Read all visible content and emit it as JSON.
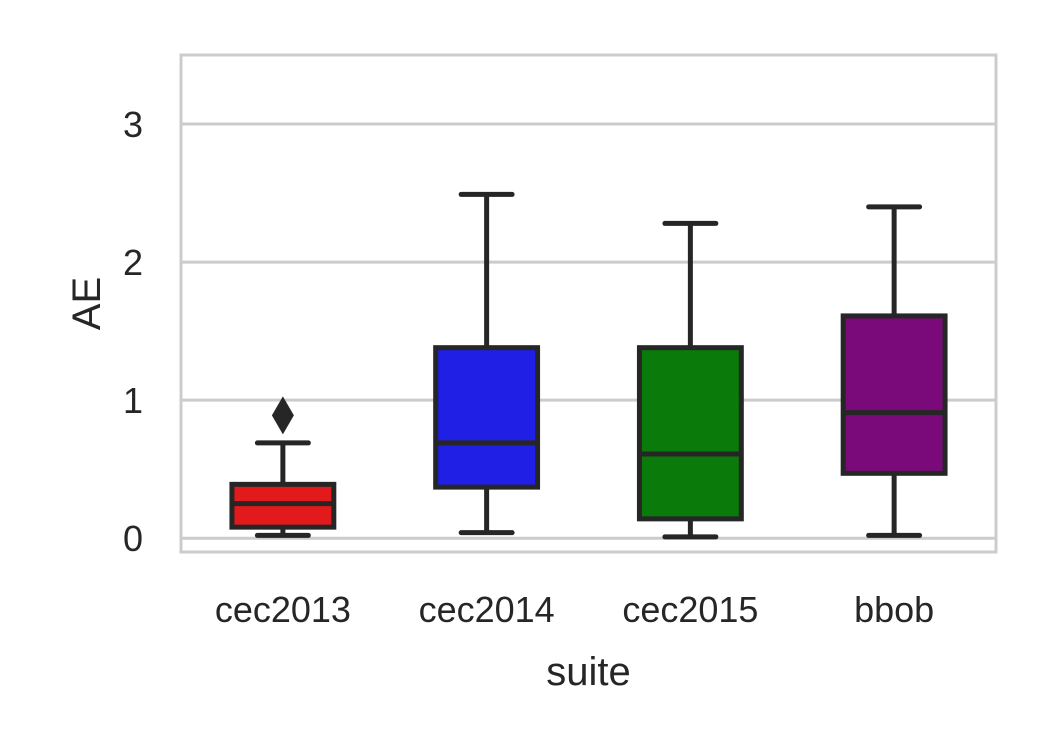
{
  "chart_data": {
    "type": "box",
    "title": "",
    "xlabel": "suite",
    "ylabel": "AE",
    "ylim": [
      -0.1,
      3.5
    ],
    "yticks": [
      0,
      1,
      2,
      3
    ],
    "grid": "horizontal",
    "categories": [
      "cec2013",
      "cec2014",
      "cec2015",
      "bbob"
    ],
    "boxes": [
      {
        "category": "cec2013",
        "color": "#e31a1c",
        "whisker_low": 0.02,
        "q1": 0.08,
        "median": 0.25,
        "q3": 0.39,
        "whisker_high": 0.69,
        "outliers": [
          0.89
        ]
      },
      {
        "category": "cec2014",
        "color": "#1f1fe6",
        "whisker_low": 0.04,
        "q1": 0.37,
        "median": 0.69,
        "q3": 1.38,
        "whisker_high": 2.49,
        "outliers": []
      },
      {
        "category": "cec2015",
        "color": "#0a7a0a",
        "whisker_low": 0.01,
        "q1": 0.14,
        "median": 0.61,
        "q3": 1.38,
        "whisker_high": 2.28,
        "outliers": []
      },
      {
        "category": "bbob",
        "color": "#7a0a7a",
        "whisker_low": 0.02,
        "q1": 0.47,
        "median": 0.91,
        "q3": 1.61,
        "whisker_high": 2.4,
        "outliers": []
      }
    ]
  }
}
